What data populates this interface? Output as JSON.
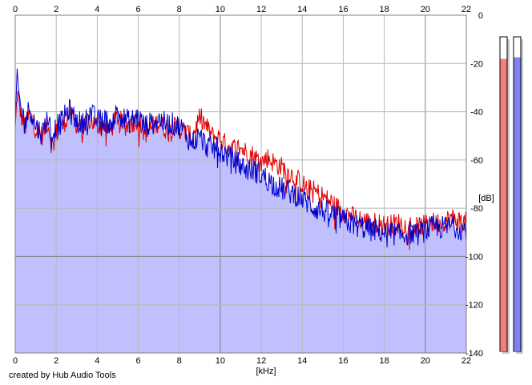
{
  "app": {
    "credit": "created by Hub Audio Tools"
  },
  "chart_data": {
    "type": "area",
    "xlabel": "[kHz]",
    "ylabel": "[dB]",
    "xlim": [
      0,
      22
    ],
    "ylim": [
      -140,
      0
    ],
    "x_ticks": [
      0,
      2,
      4,
      6,
      8,
      10,
      12,
      14,
      16,
      18,
      20,
      22
    ],
    "y_ticks": [
      0,
      -20,
      -40,
      -60,
      -80,
      -100,
      -120,
      -140
    ],
    "grid": true,
    "colors": {
      "red_channel": "#e00000",
      "blue_channel": "#0000cc",
      "fill": "#c0c0ff",
      "plot_bg": "#ffffff",
      "grid": "#c0c0c0"
    },
    "series": [
      {
        "color": "#e00000",
        "x": [
          0.0,
          0.1,
          0.2,
          0.3,
          0.5,
          0.7,
          1.0,
          1.3,
          1.6,
          1.8,
          2.0,
          2.3,
          2.6,
          3.0,
          3.3,
          3.6,
          4.0,
          4.3,
          4.6,
          5.0,
          5.3,
          5.6,
          6.0,
          6.3,
          6.6,
          7.0,
          7.3,
          7.6,
          8.0,
          8.3,
          8.6,
          9.0,
          9.3,
          9.6,
          10.0,
          10.3,
          10.6,
          11.0,
          11.3,
          11.6,
          12.0,
          12.3,
          12.6,
          13.0,
          13.3,
          13.6,
          14.0,
          14.3,
          14.6,
          15.0,
          15.3,
          15.6,
          16.0,
          16.3,
          16.6,
          17.0,
          17.3,
          17.6,
          18.0,
          18.3,
          18.6,
          19.0,
          19.3,
          19.6,
          20.0,
          20.3,
          20.6,
          21.0,
          21.3,
          21.6,
          22.0
        ],
        "y": [
          -48,
          -32,
          -37,
          -42,
          -46,
          -41,
          -47,
          -50,
          -44,
          -55,
          -49,
          -46,
          -41,
          -45,
          -48,
          -43,
          -46,
          -44,
          -48,
          -42,
          -46,
          -45,
          -43,
          -49,
          -47,
          -44,
          -47,
          -46,
          -47,
          -48,
          -51,
          -42,
          -46,
          -50,
          -51,
          -54,
          -55,
          -55,
          -57,
          -58,
          -61,
          -59,
          -61,
          -63,
          -65,
          -67,
          -70,
          -72,
          -73,
          -75,
          -77,
          -79,
          -81,
          -83,
          -84,
          -85,
          -86,
          -86,
          -87,
          -87,
          -86,
          -87,
          -87,
          -88,
          -87,
          -86,
          -86,
          -85,
          -84,
          -85,
          -86
        ]
      },
      {
        "color": "#0000cc",
        "x": [
          0.0,
          0.1,
          0.2,
          0.3,
          0.5,
          0.7,
          1.0,
          1.3,
          1.6,
          1.8,
          2.0,
          2.3,
          2.6,
          3.0,
          3.3,
          3.6,
          4.0,
          4.3,
          4.6,
          5.0,
          5.3,
          5.6,
          6.0,
          6.3,
          6.6,
          7.0,
          7.3,
          7.6,
          8.0,
          8.3,
          8.6,
          9.0,
          9.3,
          9.6,
          10.0,
          10.3,
          10.6,
          11.0,
          11.3,
          11.6,
          12.0,
          12.3,
          12.6,
          13.0,
          13.3,
          13.6,
          14.0,
          14.3,
          14.6,
          15.0,
          15.3,
          15.6,
          16.0,
          16.3,
          16.6,
          17.0,
          17.3,
          17.6,
          18.0,
          18.3,
          18.6,
          19.0,
          19.3,
          19.6,
          20.0,
          20.3,
          20.6,
          21.0,
          21.3,
          21.6,
          22.0
        ],
        "y": [
          -45,
          -26,
          -34,
          -40,
          -44,
          -38,
          -46,
          -49,
          -42,
          -50,
          -46,
          -44,
          -39,
          -44,
          -45,
          -40,
          -44,
          -43,
          -45,
          -40,
          -43,
          -44,
          -42,
          -46,
          -45,
          -43,
          -45,
          -45,
          -46,
          -49,
          -53,
          -50,
          -54,
          -55,
          -56,
          -58,
          -60,
          -62,
          -64,
          -64,
          -66,
          -68,
          -70,
          -72,
          -73,
          -74,
          -76,
          -78,
          -80,
          -81,
          -82,
          -83,
          -85,
          -86,
          -87,
          -88,
          -89,
          -89,
          -90,
          -90,
          -91,
          -91,
          -90,
          -91,
          -89,
          -88,
          -88,
          -88,
          -87,
          -88,
          -89
        ]
      }
    ],
    "level_meters": [
      {
        "color": "#f08080",
        "level": 0.93
      },
      {
        "color": "#8080f0",
        "level": 0.935
      }
    ]
  }
}
